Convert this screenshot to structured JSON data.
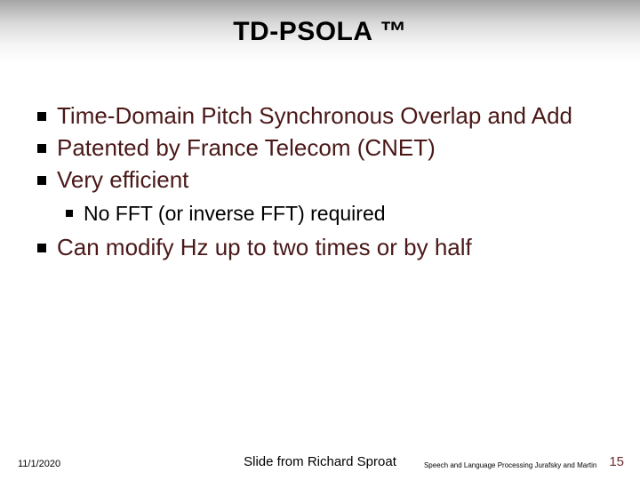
{
  "title": "TD-PSOLA ™",
  "bullets": {
    "b0": "Time-Domain Pitch Synchronous Overlap and Add",
    "b1": "Patented by France Telecom (CNET)",
    "b2": "Very efficient",
    "b2_sub0": "No FFT (or inverse FFT) required",
    "b3": "Can modify Hz up to two times or by half"
  },
  "footer": {
    "date": "11/1/2020",
    "credit": "Slide from Richard Sproat",
    "book": "Speech and Language Processing  Jurafsky and Martin",
    "page": "15"
  }
}
